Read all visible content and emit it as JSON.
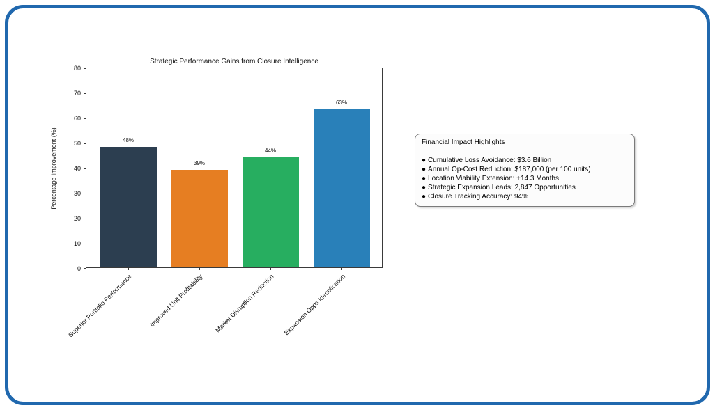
{
  "frame": {
    "border_color": "#2068ae"
  },
  "chart_data": {
    "type": "bar",
    "title": "Strategic Performance Gains from Closure Intelligence",
    "xlabel": "",
    "ylabel": "Percentage Improvement (%)",
    "categories": [
      "Superior Portfolio Performance",
      "Improved Unit Profitability",
      "Market Disruption Reduction",
      "Expansion Opps Identification"
    ],
    "values": [
      48,
      39,
      44,
      63
    ],
    "value_labels": [
      "48%",
      "39%",
      "44%",
      "63%"
    ],
    "bar_colors": [
      "#2c3e50",
      "#e67e22",
      "#27ae60",
      "#2980b9"
    ],
    "ylim": [
      0,
      80
    ],
    "yticks": [
      0,
      10,
      20,
      30,
      40,
      50,
      60,
      70,
      80
    ],
    "grid": false,
    "legend": "none",
    "x_tick_rotation_deg": 45
  },
  "highlights": {
    "title": "Financial Impact Highlights",
    "bullet": "●",
    "items": [
      "Cumulative Loss Avoidance: $3.6 Billion",
      "Annual Op-Cost Reduction: $187,000 (per 100 units)",
      "Location Viability Extension: +14.3 Months",
      "Strategic Expansion Leads: 2,847 Opportunities",
      "Closure Tracking Accuracy: 94%"
    ]
  }
}
